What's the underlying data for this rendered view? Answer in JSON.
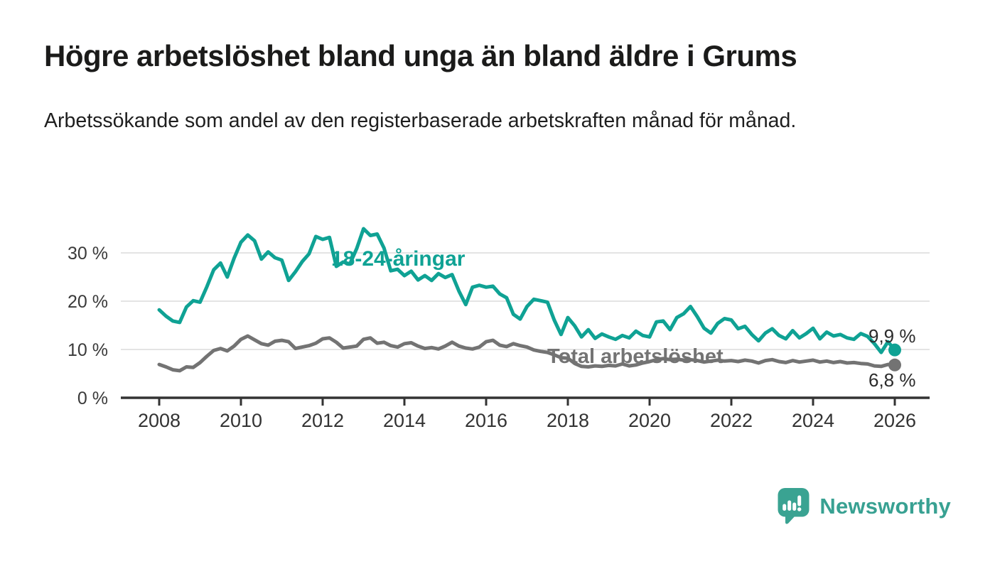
{
  "header": {
    "title": "Högre arbetslöshet bland unga än bland äldre i Grums",
    "subtitle": "Arbetssökande som andel av den registerbaserade arbetskraften månad för månad."
  },
  "footer": {
    "brand": "Newsworthy"
  },
  "colors": {
    "youth_line": "#0FA294",
    "total_line": "#737373",
    "axis": "#333333",
    "gridline": "#dcdcdc",
    "tick_label": "#3a3a3a",
    "brand_teal": "#38a192"
  },
  "chart_data": {
    "type": "line",
    "title": "Högre arbetslöshet bland unga än bland äldre i Grums",
    "subtitle": "Arbetssökande som andel av den registerbaserade arbetskraften månad för månad.",
    "unit": "%",
    "grid": "horizontal",
    "legend_position": "inline-labels",
    "x_start": 2008.0,
    "x_step_years": 0.1666667,
    "xlim": [
      2007.05,
      2026.85
    ],
    "ylim": [
      0,
      37
    ],
    "x_ticks": [
      2008,
      2010,
      2012,
      2014,
      2016,
      2018,
      2020,
      2022,
      2024,
      2026
    ],
    "y_ticks": [
      {
        "v": 0,
        "label": "0 %"
      },
      {
        "v": 10,
        "label": "10 %"
      },
      {
        "v": 20,
        "label": "20 %"
      },
      {
        "v": 30,
        "label": "30 %"
      }
    ],
    "series": [
      {
        "name": "18-24-åringar",
        "color": "#0FA294",
        "end_label": "9,9 %",
        "end_value": 9.9,
        "values": [
          18.2,
          16.9,
          15.9,
          15.6,
          18.8,
          20.1,
          19.8,
          23.0,
          26.5,
          27.9,
          25.0,
          28.9,
          32.2,
          33.7,
          32.5,
          28.7,
          30.2,
          29.0,
          28.5,
          24.3,
          26.1,
          28.2,
          29.8,
          33.4,
          32.8,
          33.2,
          27.2,
          28.1,
          27.7,
          30.9,
          35.0,
          33.6,
          33.9,
          31.0,
          26.3,
          26.6,
          25.3,
          26.2,
          24.4,
          25.3,
          24.3,
          25.7,
          24.9,
          25.5,
          22.1,
          19.3,
          22.9,
          23.3,
          22.9,
          23.1,
          21.5,
          20.7,
          17.3,
          16.3,
          18.9,
          20.4,
          20.1,
          19.8,
          16.1,
          13.1,
          16.6,
          14.9,
          12.6,
          14.1,
          12.3,
          13.2,
          12.6,
          12.1,
          12.9,
          12.4,
          13.8,
          12.9,
          12.6,
          15.7,
          15.9,
          14.1,
          16.6,
          17.4,
          18.9,
          16.8,
          14.4,
          13.4,
          15.4,
          16.4,
          16.1,
          14.3,
          14.8,
          13.1,
          11.8,
          13.4,
          14.3,
          12.9,
          12.2,
          13.9,
          12.4,
          13.3,
          14.4,
          12.2,
          13.6,
          12.8,
          13.1,
          12.4,
          12.1,
          13.3,
          12.7,
          11.2,
          9.4,
          11.6,
          9.9
        ]
      },
      {
        "name": "Total arbetslöshet",
        "color": "#737373",
        "end_label": "6,8 %",
        "end_value": 6.8,
        "values": [
          6.9,
          6.4,
          5.8,
          5.6,
          6.4,
          6.3,
          7.3,
          8.6,
          9.8,
          10.2,
          9.7,
          10.7,
          12.1,
          12.8,
          12.0,
          11.2,
          10.9,
          11.7,
          11.9,
          11.6,
          10.2,
          10.5,
          10.8,
          11.3,
          12.2,
          12.4,
          11.5,
          10.3,
          10.5,
          10.7,
          12.1,
          12.4,
          11.3,
          11.5,
          10.8,
          10.5,
          11.2,
          11.4,
          10.7,
          10.2,
          10.4,
          10.1,
          10.7,
          11.5,
          10.7,
          10.3,
          10.1,
          10.5,
          11.6,
          11.9,
          10.9,
          10.6,
          11.2,
          10.8,
          10.5,
          9.9,
          9.6,
          9.4,
          8.9,
          8.3,
          8.2,
          7.1,
          6.5,
          6.4,
          6.6,
          6.5,
          6.7,
          6.6,
          7.0,
          6.6,
          6.8,
          7.2,
          7.5,
          7.9,
          8.1,
          7.9,
          8.0,
          7.8,
          7.9,
          7.7,
          7.4,
          7.6,
          7.8,
          7.6,
          7.7,
          7.5,
          7.8,
          7.6,
          7.2,
          7.7,
          7.9,
          7.5,
          7.3,
          7.7,
          7.4,
          7.6,
          7.8,
          7.4,
          7.6,
          7.3,
          7.5,
          7.2,
          7.3,
          7.1,
          7.0,
          6.6,
          6.5,
          6.9,
          6.8
        ]
      }
    ]
  }
}
